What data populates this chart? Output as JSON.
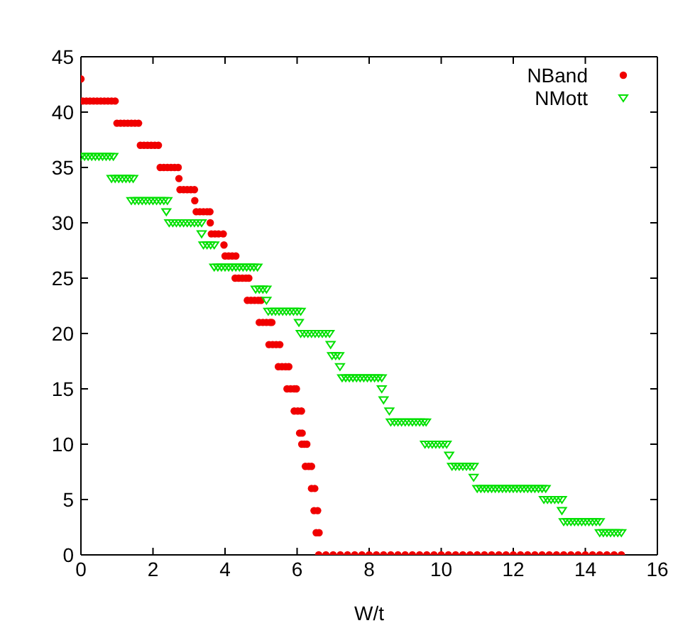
{
  "chart_data": {
    "type": "scatter",
    "xlabel": "W/t",
    "xlim": [
      0,
      16
    ],
    "xticks": [
      0,
      2,
      4,
      6,
      8,
      10,
      12,
      14,
      16
    ],
    "ylim": [
      0,
      45
    ],
    "yticks": [
      0,
      5,
      10,
      15,
      20,
      25,
      30,
      35,
      40,
      45
    ],
    "legend": "top right",
    "series": [
      {
        "name": "NBand",
        "color": "#f00000",
        "marker": "circle",
        "x": [
          0,
          0.05,
          0.15,
          0.25,
          0.35,
          0.45,
          0.55,
          0.65,
          0.75,
          0.85,
          0.95,
          1.0,
          1.1,
          1.2,
          1.3,
          1.4,
          1.5,
          1.6,
          1.65,
          1.75,
          1.85,
          1.95,
          2.05,
          2.15,
          2.2,
          2.3,
          2.4,
          2.5,
          2.6,
          2.7,
          2.72,
          2.75,
          2.85,
          2.95,
          3.05,
          3.15,
          3.16,
          3.2,
          3.3,
          3.4,
          3.5,
          3.58,
          3.59,
          3.62,
          3.72,
          3.82,
          3.95,
          3.97,
          4.0,
          4.1,
          4.2,
          4.3,
          4.28,
          4.38,
          4.48,
          4.58,
          4.66,
          4.62,
          4.72,
          4.82,
          4.92,
          5.0,
          4.95,
          5.05,
          5.15,
          5.25,
          5.3,
          5.22,
          5.32,
          5.42,
          5.52,
          5.48,
          5.58,
          5.68,
          5.77,
          5.72,
          5.82,
          5.92,
          5.98,
          5.92,
          6.02,
          6.12,
          6.07,
          6.14,
          6.13,
          6.2,
          6.27,
          6.23,
          6.32,
          6.4,
          6.4,
          6.49,
          6.47,
          6.57,
          6.53,
          6.61,
          6.6,
          6.8,
          7.0,
          7.2,
          7.4,
          7.6,
          7.8,
          8.0,
          8.2,
          8.4,
          8.6,
          8.8,
          9.0,
          9.2,
          9.4,
          9.6,
          9.8,
          10.0,
          10.2,
          10.4,
          10.6,
          10.8,
          11.0,
          11.2,
          11.4,
          11.6,
          11.8,
          12.0,
          12.2,
          12.4,
          12.6,
          12.8,
          13.0,
          13.2,
          13.4,
          13.6,
          13.8,
          14.0,
          14.2,
          14.4,
          14.6,
          14.8,
          15.0
        ],
        "values": [
          43,
          41,
          41,
          41,
          41,
          41,
          41,
          41,
          41,
          41,
          41,
          39,
          39,
          39,
          39,
          39,
          39,
          39,
          37,
          37,
          37,
          37,
          37,
          37,
          35,
          35,
          35,
          35,
          35,
          35,
          34,
          33,
          33,
          33,
          33,
          33,
          32,
          31,
          31,
          31,
          31,
          31,
          30,
          29,
          29,
          29,
          29,
          28,
          27,
          27,
          27,
          27,
          25,
          25,
          25,
          25,
          25,
          23,
          23,
          23,
          23,
          23,
          21,
          21,
          21,
          21,
          21,
          19,
          19,
          19,
          19,
          17,
          17,
          17,
          17,
          15,
          15,
          15,
          15,
          13,
          13,
          13,
          11,
          11,
          10,
          10,
          10,
          8,
          8,
          8,
          6,
          6,
          4,
          4,
          2,
          2,
          0,
          0,
          0,
          0,
          0,
          0,
          0,
          0,
          0,
          0,
          0,
          0,
          0,
          0,
          0,
          0,
          0,
          0,
          0,
          0,
          0,
          0,
          0,
          0,
          0,
          0,
          0,
          0,
          0,
          0,
          0,
          0,
          0,
          0,
          0,
          0,
          0,
          0,
          0,
          0,
          0,
          0,
          0
        ]
      },
      {
        "name": "NMott",
        "color": "#00e000",
        "marker": "triangle",
        "x": [
          0,
          0.1,
          0.2,
          0.3,
          0.4,
          0.5,
          0.6,
          0.7,
          0.8,
          0.9,
          0.85,
          0.95,
          1.05,
          1.15,
          1.25,
          1.35,
          1.45,
          1.4,
          1.5,
          1.6,
          1.7,
          1.8,
          1.9,
          2.0,
          2.1,
          2.2,
          2.3,
          2.4,
          2.37,
          2.45,
          2.55,
          2.65,
          2.75,
          2.85,
          2.95,
          3.05,
          3.15,
          3.25,
          3.35,
          3.35,
          3.4,
          3.5,
          3.6,
          3.7,
          3.7,
          3.8,
          3.9,
          4.0,
          4.1,
          4.2,
          4.3,
          4.4,
          4.5,
          4.6,
          4.7,
          4.8,
          4.9,
          4.85,
          4.95,
          5.05,
          5.15,
          5.15,
          5.2,
          5.3,
          5.4,
          5.5,
          5.6,
          5.7,
          5.8,
          5.9,
          6.0,
          6.1,
          6.05,
          6.1,
          6.2,
          6.3,
          6.4,
          6.5,
          6.6,
          6.7,
          6.8,
          6.9,
          6.93,
          6.97,
          7.07,
          7.17,
          7.19,
          7.25,
          7.35,
          7.45,
          7.55,
          7.65,
          7.75,
          7.85,
          7.95,
          8.05,
          8.15,
          8.25,
          8.35,
          8.35,
          8.4,
          8.56,
          8.6,
          8.7,
          8.8,
          8.9,
          9.0,
          9.1,
          9.2,
          9.3,
          9.4,
          9.5,
          9.58,
          9.55,
          9.65,
          9.75,
          9.85,
          9.95,
          10.05,
          10.15,
          10.22,
          10.3,
          10.4,
          10.5,
          10.6,
          10.7,
          10.8,
          10.9,
          10.9,
          11.0,
          11.1,
          11.2,
          11.3,
          11.4,
          11.5,
          11.6,
          11.7,
          11.8,
          11.9,
          12.0,
          12.1,
          12.2,
          12.3,
          12.4,
          12.5,
          12.6,
          12.7,
          12.8,
          12.9,
          12.85,
          12.95,
          13.05,
          13.15,
          13.25,
          13.35,
          13.35,
          13.4,
          13.5,
          13.6,
          13.7,
          13.8,
          13.9,
          14.0,
          14.1,
          14.2,
          14.3,
          14.4,
          14.4,
          14.5,
          14.6,
          14.7,
          14.8,
          14.9,
          15.0
        ],
        "values": [
          36,
          36,
          36,
          36,
          36,
          36,
          36,
          36,
          36,
          36,
          34,
          34,
          34,
          34,
          34,
          34,
          34,
          32,
          32,
          32,
          32,
          32,
          32,
          32,
          32,
          32,
          32,
          32,
          31,
          30,
          30,
          30,
          30,
          30,
          30,
          30,
          30,
          30,
          30,
          29,
          28,
          28,
          28,
          28,
          26,
          26,
          26,
          26,
          26,
          26,
          26,
          26,
          26,
          26,
          26,
          26,
          26,
          24,
          24,
          24,
          24,
          23,
          22,
          22,
          22,
          22,
          22,
          22,
          22,
          22,
          22,
          22,
          21,
          20,
          20,
          20,
          20,
          20,
          20,
          20,
          20,
          20,
          19,
          18,
          18,
          18,
          17,
          16,
          16,
          16,
          16,
          16,
          16,
          16,
          16,
          16,
          16,
          16,
          16,
          15,
          14,
          13,
          12,
          12,
          12,
          12,
          12,
          12,
          12,
          12,
          12,
          12,
          12,
          10,
          10,
          10,
          10,
          10,
          10,
          10,
          9,
          8,
          8,
          8,
          8,
          8,
          8,
          8,
          7,
          6,
          6,
          6,
          6,
          6,
          6,
          6,
          6,
          6,
          6,
          6,
          6,
          6,
          6,
          6,
          6,
          6,
          6,
          6,
          6,
          5,
          5,
          5,
          5,
          5,
          5,
          4,
          3,
          3,
          3,
          3,
          3,
          3,
          3,
          3,
          3,
          3,
          3,
          2,
          2,
          2,
          2,
          2,
          2,
          2
        ]
      }
    ]
  }
}
